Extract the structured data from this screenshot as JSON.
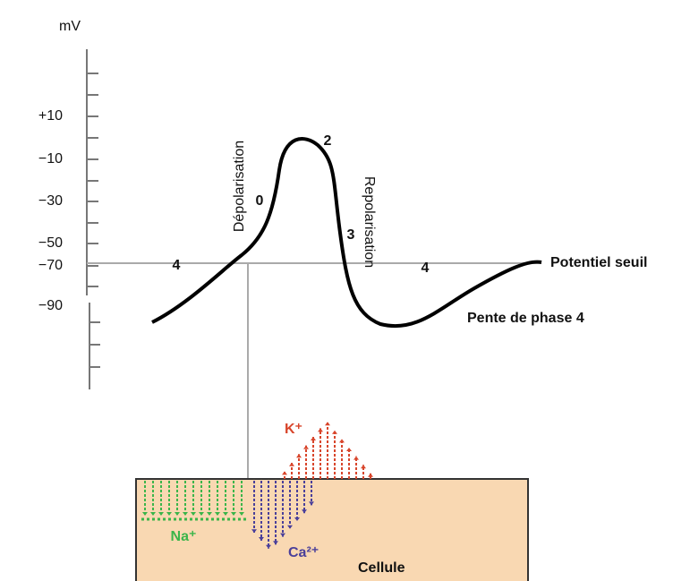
{
  "axis": {
    "unit": "mV",
    "ticks": [
      "+10",
      "−10",
      "−30",
      "−50",
      "−70",
      "−90"
    ]
  },
  "curve": {
    "phases": [
      "4",
      "0",
      "2",
      "3",
      "4"
    ],
    "depolarisation": "Dépolarisation",
    "repolarisation": "Repolarisation",
    "threshold": "Potentiel seuil",
    "slope": "Pente de phase 4"
  },
  "cell": {
    "label": "Cellule",
    "ions": [
      "Na⁺",
      "Ca²⁺",
      "K⁺"
    ]
  }
}
